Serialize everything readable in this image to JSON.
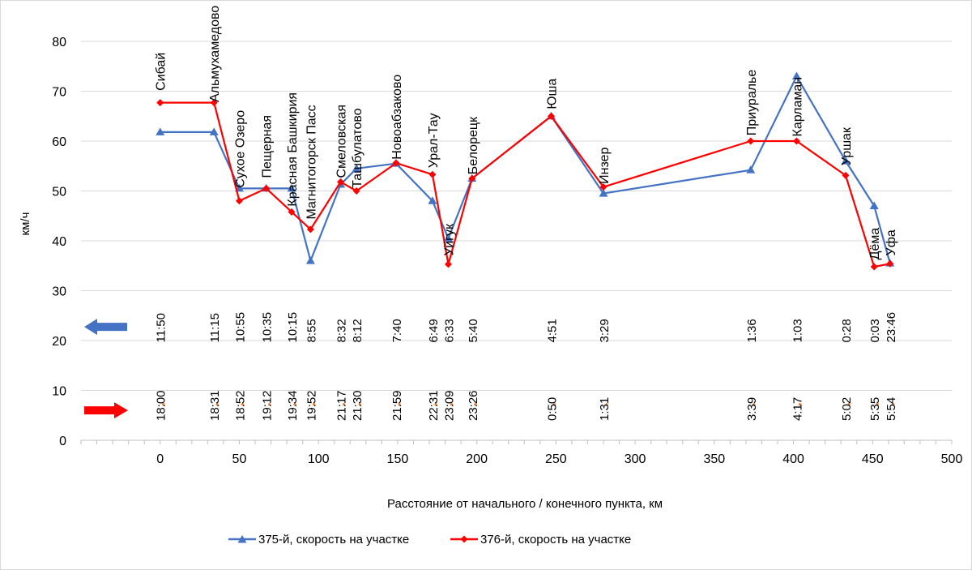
{
  "chart_data": {
    "type": "line",
    "xlabel": "Расстояние от начального / конечного пункта, км",
    "ylabel": "км/ч",
    "xlim": [
      -50,
      500
    ],
    "ylim": [
      0,
      80
    ],
    "xticks": [
      "0",
      "50",
      "100",
      "150",
      "200",
      "250",
      "300",
      "350",
      "400",
      "450",
      "500"
    ],
    "yticks": [
      "0",
      "10",
      "20",
      "30",
      "40",
      "50",
      "60",
      "70",
      "80"
    ],
    "colors": {
      "s375": "#4472C4",
      "s376": "#FF0000",
      "axis": "#BFBFBF",
      "grid": "#D9D9D9",
      "dots": "#ED7D31"
    },
    "series": [
      {
        "name": "375-й, скорость на участке",
        "x": [
          0,
          34,
          50,
          67,
          83,
          95,
          114,
          124,
          149,
          172,
          182,
          197,
          247,
          280,
          373,
          402,
          433,
          451,
          461
        ],
        "y": [
          61.8,
          61.8,
          50.5,
          50.5,
          50.5,
          36.0,
          51.3,
          54.5,
          55.5,
          48.0,
          40.5,
          52.5,
          65.0,
          49.5,
          54.2,
          73.0,
          56.0,
          47.0,
          35.5
        ]
      },
      {
        "name": "376-й, скорость на участке",
        "x": [
          0,
          34,
          50,
          67,
          83,
          95,
          114,
          124,
          149,
          172,
          182,
          197,
          247,
          280,
          373,
          402,
          433,
          451,
          461
        ],
        "y": [
          67.7,
          67.7,
          48.0,
          50.5,
          45.8,
          42.3,
          51.8,
          50.0,
          55.6,
          53.3,
          35.3,
          52.5,
          65.0,
          50.8,
          60.0,
          60.0,
          53.1,
          34.8,
          35.4
        ]
      }
    ],
    "stations": [
      {
        "name": "Сибай",
        "x": 0,
        "y": 70.1
      },
      {
        "name": "Альмухамедово",
        "x": 34,
        "y": 67.8
      },
      {
        "name": "Сухое Озеро",
        "x": 50,
        "y": 50.6
      },
      {
        "name": "Пещерная",
        "x": 67,
        "y": 52.6
      },
      {
        "name": "Красная Башкирия",
        "x": 83,
        "y": 46.9
      },
      {
        "name": "Магнитогорск Пасс",
        "x": 95,
        "y": 44.3
      },
      {
        "name": "Смеловская",
        "x": 114,
        "y": 52.6
      },
      {
        "name": "Ташбулатово",
        "x": 124,
        "y": 50.6
      },
      {
        "name": "Новоабзаково",
        "x": 149,
        "y": 56.3
      },
      {
        "name": "Урал-Тау",
        "x": 172,
        "y": 54.6
      },
      {
        "name": "Уйгук",
        "x": 182,
        "y": 37.0
      },
      {
        "name": "Белорецк",
        "x": 197,
        "y": 53.3
      },
      {
        "name": "Юша",
        "x": 247,
        "y": 66.4
      },
      {
        "name": "Инзер",
        "x": 280,
        "y": 51.4
      },
      {
        "name": "Приуралье",
        "x": 373,
        "y": 61.1
      },
      {
        "name": "Карламан",
        "x": 402,
        "y": 60.9
      },
      {
        "name": "Уршак",
        "x": 433,
        "y": 55.1
      },
      {
        "name": "Дёма",
        "x": 451,
        "y": 36.2
      },
      {
        "name": "Уфа",
        "x": 461,
        "y": 37.0
      }
    ],
    "times_375": {
      "direction": "left",
      "y": 19.6,
      "labels": [
        {
          "text": "11:50",
          "x": 0
        },
        {
          "text": "11:15",
          "x": 34
        },
        {
          "text": "10:55",
          "x": 50
        },
        {
          "text": "10:35",
          "x": 67
        },
        {
          "text": "10:15",
          "x": 83
        },
        {
          "text": "8:55",
          "x": 95
        },
        {
          "text": "8:32",
          "x": 114
        },
        {
          "text": "8:12",
          "x": 124
        },
        {
          "text": "7:40",
          "x": 149
        },
        {
          "text": "6:49",
          "x": 172
        },
        {
          "text": "6:33",
          "x": 182
        },
        {
          "text": "5:40",
          "x": 197
        },
        {
          "text": "4:51",
          "x": 247
        },
        {
          "text": "3:29",
          "x": 280
        },
        {
          "text": "1:36",
          "x": 373
        },
        {
          "text": "1:03",
          "x": 402
        },
        {
          "text": "0:28",
          "x": 433
        },
        {
          "text": "0:03",
          "x": 451
        },
        {
          "text": "23:46",
          "x": 461
        }
      ]
    },
    "times_376": {
      "direction": "right",
      "y": 3.9,
      "labels": [
        {
          "text": "18:00",
          "x": 0
        },
        {
          "text": "18:31",
          "x": 34
        },
        {
          "text": "18:52",
          "x": 50
        },
        {
          "text": "19:12",
          "x": 67
        },
        {
          "text": "19:34",
          "x": 83
        },
        {
          "text": "19:52",
          "x": 95
        },
        {
          "text": "21:17",
          "x": 114
        },
        {
          "text": "21:30",
          "x": 124
        },
        {
          "text": "21:59",
          "x": 149
        },
        {
          "text": "22:31",
          "x": 172
        },
        {
          "text": "23:09",
          "x": 182
        },
        {
          "text": "23:26",
          "x": 197
        },
        {
          "text": "0:50",
          "x": 247
        },
        {
          "text": "1:31",
          "x": 280
        },
        {
          "text": "3:39",
          "x": 373
        },
        {
          "text": "4:17",
          "x": 402
        },
        {
          "text": "5:02",
          "x": 433
        },
        {
          "text": "5:35",
          "x": 451
        },
        {
          "text": "5:54",
          "x": 461
        }
      ]
    },
    "legend": {
      "position": "bottom"
    }
  }
}
